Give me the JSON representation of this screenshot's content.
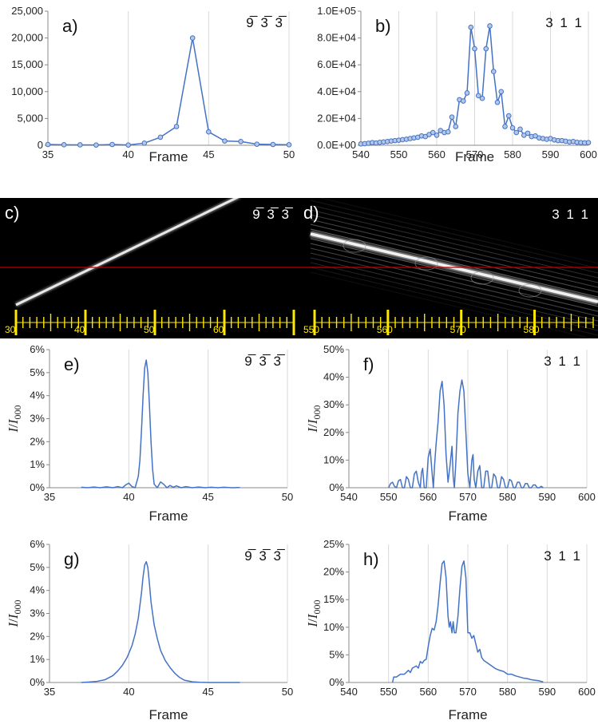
{
  "chart_data": [
    {
      "id": "a",
      "panel_label": "a)",
      "hkl": "9̅ 3̅ 3̅",
      "type": "line",
      "markers": true,
      "xlabel": "Frame",
      "ylabel": "",
      "xlim": [
        35,
        50
      ],
      "xticks": [
        35,
        40,
        45,
        50
      ],
      "ylim": [
        0,
        25000
      ],
      "yticks": [
        0,
        5000,
        10000,
        15000,
        20000,
        25000
      ],
      "yticklabels": [
        "0",
        "5,000",
        "10,000",
        "15,000",
        "20,000",
        "25,000"
      ],
      "grid": "vertical",
      "x": [
        35,
        36,
        37,
        38,
        39,
        40,
        41,
        42,
        43,
        44,
        45,
        46,
        47,
        48,
        49,
        50
      ],
      "y": [
        150,
        100,
        80,
        50,
        150,
        50,
        400,
        1500,
        3500,
        20000,
        2500,
        800,
        700,
        200,
        150,
        100
      ]
    },
    {
      "id": "b",
      "panel_label": "b)",
      "hkl": "3 1 1",
      "type": "line",
      "markers": true,
      "xlabel": "Frame",
      "ylabel": "",
      "xlim": [
        540,
        600
      ],
      "xticks": [
        540,
        550,
        560,
        570,
        580,
        590,
        600
      ],
      "ylim": [
        0,
        100000
      ],
      "yticks": [
        0,
        20000,
        40000,
        60000,
        80000,
        100000
      ],
      "yticklabels": [
        "0.0E+00",
        "2.0E+04",
        "4.0E+04",
        "6.0E+04",
        "8.0E+04",
        "1.0E+05"
      ],
      "grid": "vertical",
      "x": [
        540,
        541,
        542,
        543,
        544,
        545,
        546,
        547,
        548,
        549,
        550,
        551,
        552,
        553,
        554,
        555,
        556,
        557,
        558,
        559,
        560,
        561,
        562,
        563,
        564,
        565,
        566,
        567,
        568,
        569,
        570,
        571,
        572,
        573,
        574,
        575,
        576,
        577,
        578,
        579,
        580,
        581,
        582,
        583,
        584,
        585,
        586,
        587,
        588,
        589,
        590,
        591,
        592,
        593,
        594,
        595,
        596,
        597,
        598,
        599,
        600
      ],
      "y": [
        1000,
        1200,
        1500,
        2000,
        1700,
        2200,
        2500,
        2800,
        3200,
        3500,
        3800,
        4200,
        4500,
        5000,
        5500,
        6000,
        7000,
        6500,
        8000,
        9500,
        7500,
        11000,
        9500,
        10000,
        21000,
        14000,
        34000,
        33000,
        39000,
        88000,
        72000,
        37000,
        35000,
        72000,
        89000,
        55000,
        32000,
        40000,
        14000,
        22000,
        13000,
        9500,
        12000,
        7500,
        9000,
        6500,
        7000,
        5500,
        5000,
        4500,
        5000,
        4000,
        3500,
        3500,
        3000,
        2500,
        2800,
        2200,
        2000,
        1800,
        2000
      ]
    },
    {
      "id": "e",
      "panel_label": "e)",
      "hkl": "9̅ 3̅ 3̅",
      "type": "line",
      "markers": false,
      "xlabel": "Frame",
      "ylabel_main": "I",
      "ylabel_div": "/",
      "ylabel_sub_main": "I",
      "ylabel_sub": "000",
      "xlim": [
        35,
        50
      ],
      "xticks": [
        35,
        40,
        45,
        50
      ],
      "ylim": [
        0,
        6
      ],
      "yticks": [
        0,
        1,
        2,
        3,
        4,
        5,
        6
      ],
      "yticklabels": [
        "0%",
        "1%",
        "2%",
        "3%",
        "4%",
        "5%",
        "6%"
      ],
      "grid": "vertical",
      "x": [
        37.0,
        37.4,
        37.8,
        38.2,
        38.6,
        39.0,
        39.3,
        39.6,
        39.8,
        40.0,
        40.2,
        40.4,
        40.6,
        40.7,
        40.8,
        40.9,
        41.0,
        41.1,
        41.2,
        41.3,
        41.4,
        41.5,
        41.6,
        41.8,
        42.0,
        42.2,
        42.4,
        42.6,
        42.8,
        43.0,
        43.3,
        43.6,
        44.0,
        44.4,
        44.8,
        45.2,
        45.6,
        46.0,
        46.5,
        47.0
      ],
      "y": [
        0.02,
        0.0,
        0.03,
        0.0,
        0.04,
        0.0,
        0.05,
        0.0,
        0.12,
        0.2,
        0.05,
        0.0,
        0.5,
        1.2,
        2.5,
        4.0,
        5.2,
        5.55,
        5.0,
        3.6,
        2.0,
        0.8,
        0.15,
        0.0,
        0.25,
        0.15,
        0.0,
        0.1,
        0.02,
        0.08,
        0.0,
        0.05,
        0.0,
        0.03,
        0.0,
        0.02,
        0.0,
        0.02,
        0.0,
        0.01
      ]
    },
    {
      "id": "f",
      "panel_label": "f)",
      "hkl": "3 1 1",
      "type": "line",
      "markers": false,
      "xlabel": "Frame",
      "ylabel_main": "I",
      "ylabel_div": "/",
      "ylabel_sub_main": "I",
      "ylabel_sub": "000",
      "xlim": [
        540,
        600
      ],
      "xticks": [
        540,
        550,
        560,
        570,
        580,
        590,
        600
      ],
      "ylim": [
        0,
        50
      ],
      "yticks": [
        0,
        10,
        20,
        30,
        40,
        50
      ],
      "yticklabels": [
        "0%",
        "10%",
        "20%",
        "30%",
        "40%",
        "50%"
      ],
      "grid": "vertical",
      "x": [
        550,
        550.5,
        551,
        551.5,
        552,
        552.5,
        553,
        553.5,
        554,
        554.5,
        555,
        555.5,
        556,
        556.5,
        557,
        557.5,
        558,
        558.3,
        558.6,
        559,
        559.5,
        560,
        560.5,
        561,
        561.3,
        561.6,
        562,
        562.5,
        563,
        563.5,
        564,
        564.5,
        565,
        565.5,
        566,
        566.3,
        566.6,
        567,
        567.5,
        568,
        568.5,
        569,
        569.5,
        570,
        570.5,
        571,
        571.3,
        571.6,
        572,
        572.5,
        573,
        573.5,
        574,
        574.5,
        575,
        575.5,
        576,
        576.5,
        577,
        577.5,
        578,
        578.5,
        579,
        579.5,
        580,
        580.5,
        581,
        581.5,
        582,
        582.5,
        583,
        583.5,
        584,
        584.5,
        585,
        585.5,
        586,
        586.5,
        587,
        587.5,
        588,
        588.5,
        589
      ],
      "y": [
        0,
        1.5,
        2,
        0.5,
        0,
        2.5,
        3,
        0,
        0,
        4,
        3,
        0,
        0,
        5,
        6,
        2,
        0,
        5.5,
        7,
        0,
        0,
        11,
        14,
        5,
        0,
        8,
        16,
        24,
        35,
        38.5,
        30,
        12,
        2,
        8,
        15,
        4,
        0,
        10,
        27,
        35,
        39,
        35,
        20,
        5,
        0,
        10,
        12,
        3,
        0,
        6,
        8,
        0,
        0,
        6,
        6,
        0,
        0,
        5,
        4,
        0,
        0,
        4,
        3,
        0,
        0,
        3,
        2.5,
        0,
        0,
        2,
        2,
        0,
        0,
        1.5,
        1.5,
        0,
        0,
        1,
        1,
        0,
        0,
        0.5,
        0
      ]
    },
    {
      "id": "g",
      "panel_label": "g)",
      "hkl": "9̅ 3̅ 3̅",
      "type": "line",
      "markers": false,
      "xlabel": "Frame",
      "ylabel_main": "I",
      "ylabel_div": "/",
      "ylabel_sub_main": "I",
      "ylabel_sub": "000",
      "xlim": [
        35,
        50
      ],
      "xticks": [
        35,
        40,
        45,
        50
      ],
      "ylim": [
        0,
        6
      ],
      "yticks": [
        0,
        1,
        2,
        3,
        4,
        5,
        6
      ],
      "yticklabels": [
        "0%",
        "1%",
        "2%",
        "3%",
        "4%",
        "5%",
        "6%"
      ],
      "grid": "vertical",
      "x": [
        37.0,
        37.5,
        38.0,
        38.5,
        39.0,
        39.3,
        39.6,
        39.9,
        40.2,
        40.4,
        40.6,
        40.8,
        40.9,
        41.0,
        41.1,
        41.2,
        41.3,
        41.4,
        41.6,
        41.8,
        42.0,
        42.3,
        42.6,
        42.9,
        43.2,
        43.5,
        44.0,
        44.5,
        45.0,
        46.0,
        47.0
      ],
      "y": [
        0.0,
        0.02,
        0.05,
        0.12,
        0.3,
        0.5,
        0.75,
        1.1,
        1.6,
        2.1,
        2.8,
        3.9,
        4.6,
        5.1,
        5.25,
        5.0,
        4.3,
        3.5,
        2.5,
        1.9,
        1.4,
        0.95,
        0.65,
        0.4,
        0.22,
        0.1,
        0.03,
        0.01,
        0.0,
        0.0,
        0.0
      ]
    },
    {
      "id": "h",
      "panel_label": "h)",
      "hkl": "3 1 1",
      "type": "line",
      "markers": false,
      "xlabel": "Frame",
      "ylabel_main": "I",
      "ylabel_div": "/",
      "ylabel_sub_main": "I",
      "ylabel_sub": "000",
      "xlim": [
        540,
        600
      ],
      "xticks": [
        540,
        550,
        560,
        570,
        580,
        590,
        600
      ],
      "ylim": [
        0,
        25
      ],
      "yticks": [
        0,
        5,
        10,
        15,
        20,
        25
      ],
      "yticklabels": [
        "0%",
        "5%",
        "10%",
        "15%",
        "20%",
        "25%"
      ],
      "grid": "vertical",
      "x": [
        551,
        551.3,
        552,
        553,
        554,
        555,
        555.5,
        556,
        557,
        557.5,
        558,
        558.5,
        559,
        559.5,
        560,
        560.5,
        561,
        561.5,
        562,
        562.5,
        563,
        563.5,
        564,
        564.5,
        565,
        565.3,
        565.6,
        566,
        566.3,
        566.6,
        567,
        567.5,
        568,
        568.5,
        569,
        569.5,
        570,
        570.5,
        571,
        571.5,
        572,
        572.5,
        573,
        573.5,
        574,
        575,
        576,
        577,
        578,
        579,
        580,
        581,
        582,
        583,
        584,
        585,
        586,
        587,
        588,
        589
      ],
      "y": [
        0,
        1,
        1,
        1.5,
        1.5,
        2.2,
        1.8,
        2.6,
        3,
        2.6,
        3.8,
        3.5,
        4,
        4.2,
        6.5,
        8.5,
        9.8,
        9.5,
        11,
        14,
        18,
        21.5,
        22,
        19,
        12,
        10,
        11,
        9,
        11,
        9,
        9,
        12,
        17,
        21,
        22,
        19,
        9,
        9,
        8,
        8.5,
        7,
        5.5,
        6,
        4.5,
        4,
        3.5,
        3,
        2.5,
        2.2,
        2,
        1.5,
        1.5,
        1.2,
        1,
        0.8,
        0.7,
        0.5,
        0.4,
        0.3,
        0.1
      ]
    }
  ],
  "image_panels": [
    {
      "id": "c",
      "panel_label": "c)",
      "hkl": "9̅ 3̅ 3̅",
      "scale_labels": [
        "30",
        "40",
        "50",
        "60"
      ],
      "scale_start": 30,
      "scale_end": 70
    },
    {
      "id": "d",
      "panel_label": "d)",
      "hkl": "3 1 1",
      "scale_labels": [
        "550",
        "560",
        "570",
        "580"
      ],
      "scale_start": 550,
      "scale_end": 588
    }
  ],
  "colors": {
    "line": "#4472C4",
    "marker_fill": "#B4C7E7",
    "scale": "#FFE800",
    "red_line": "#C00000",
    "grid": "#D9D9D9"
  }
}
